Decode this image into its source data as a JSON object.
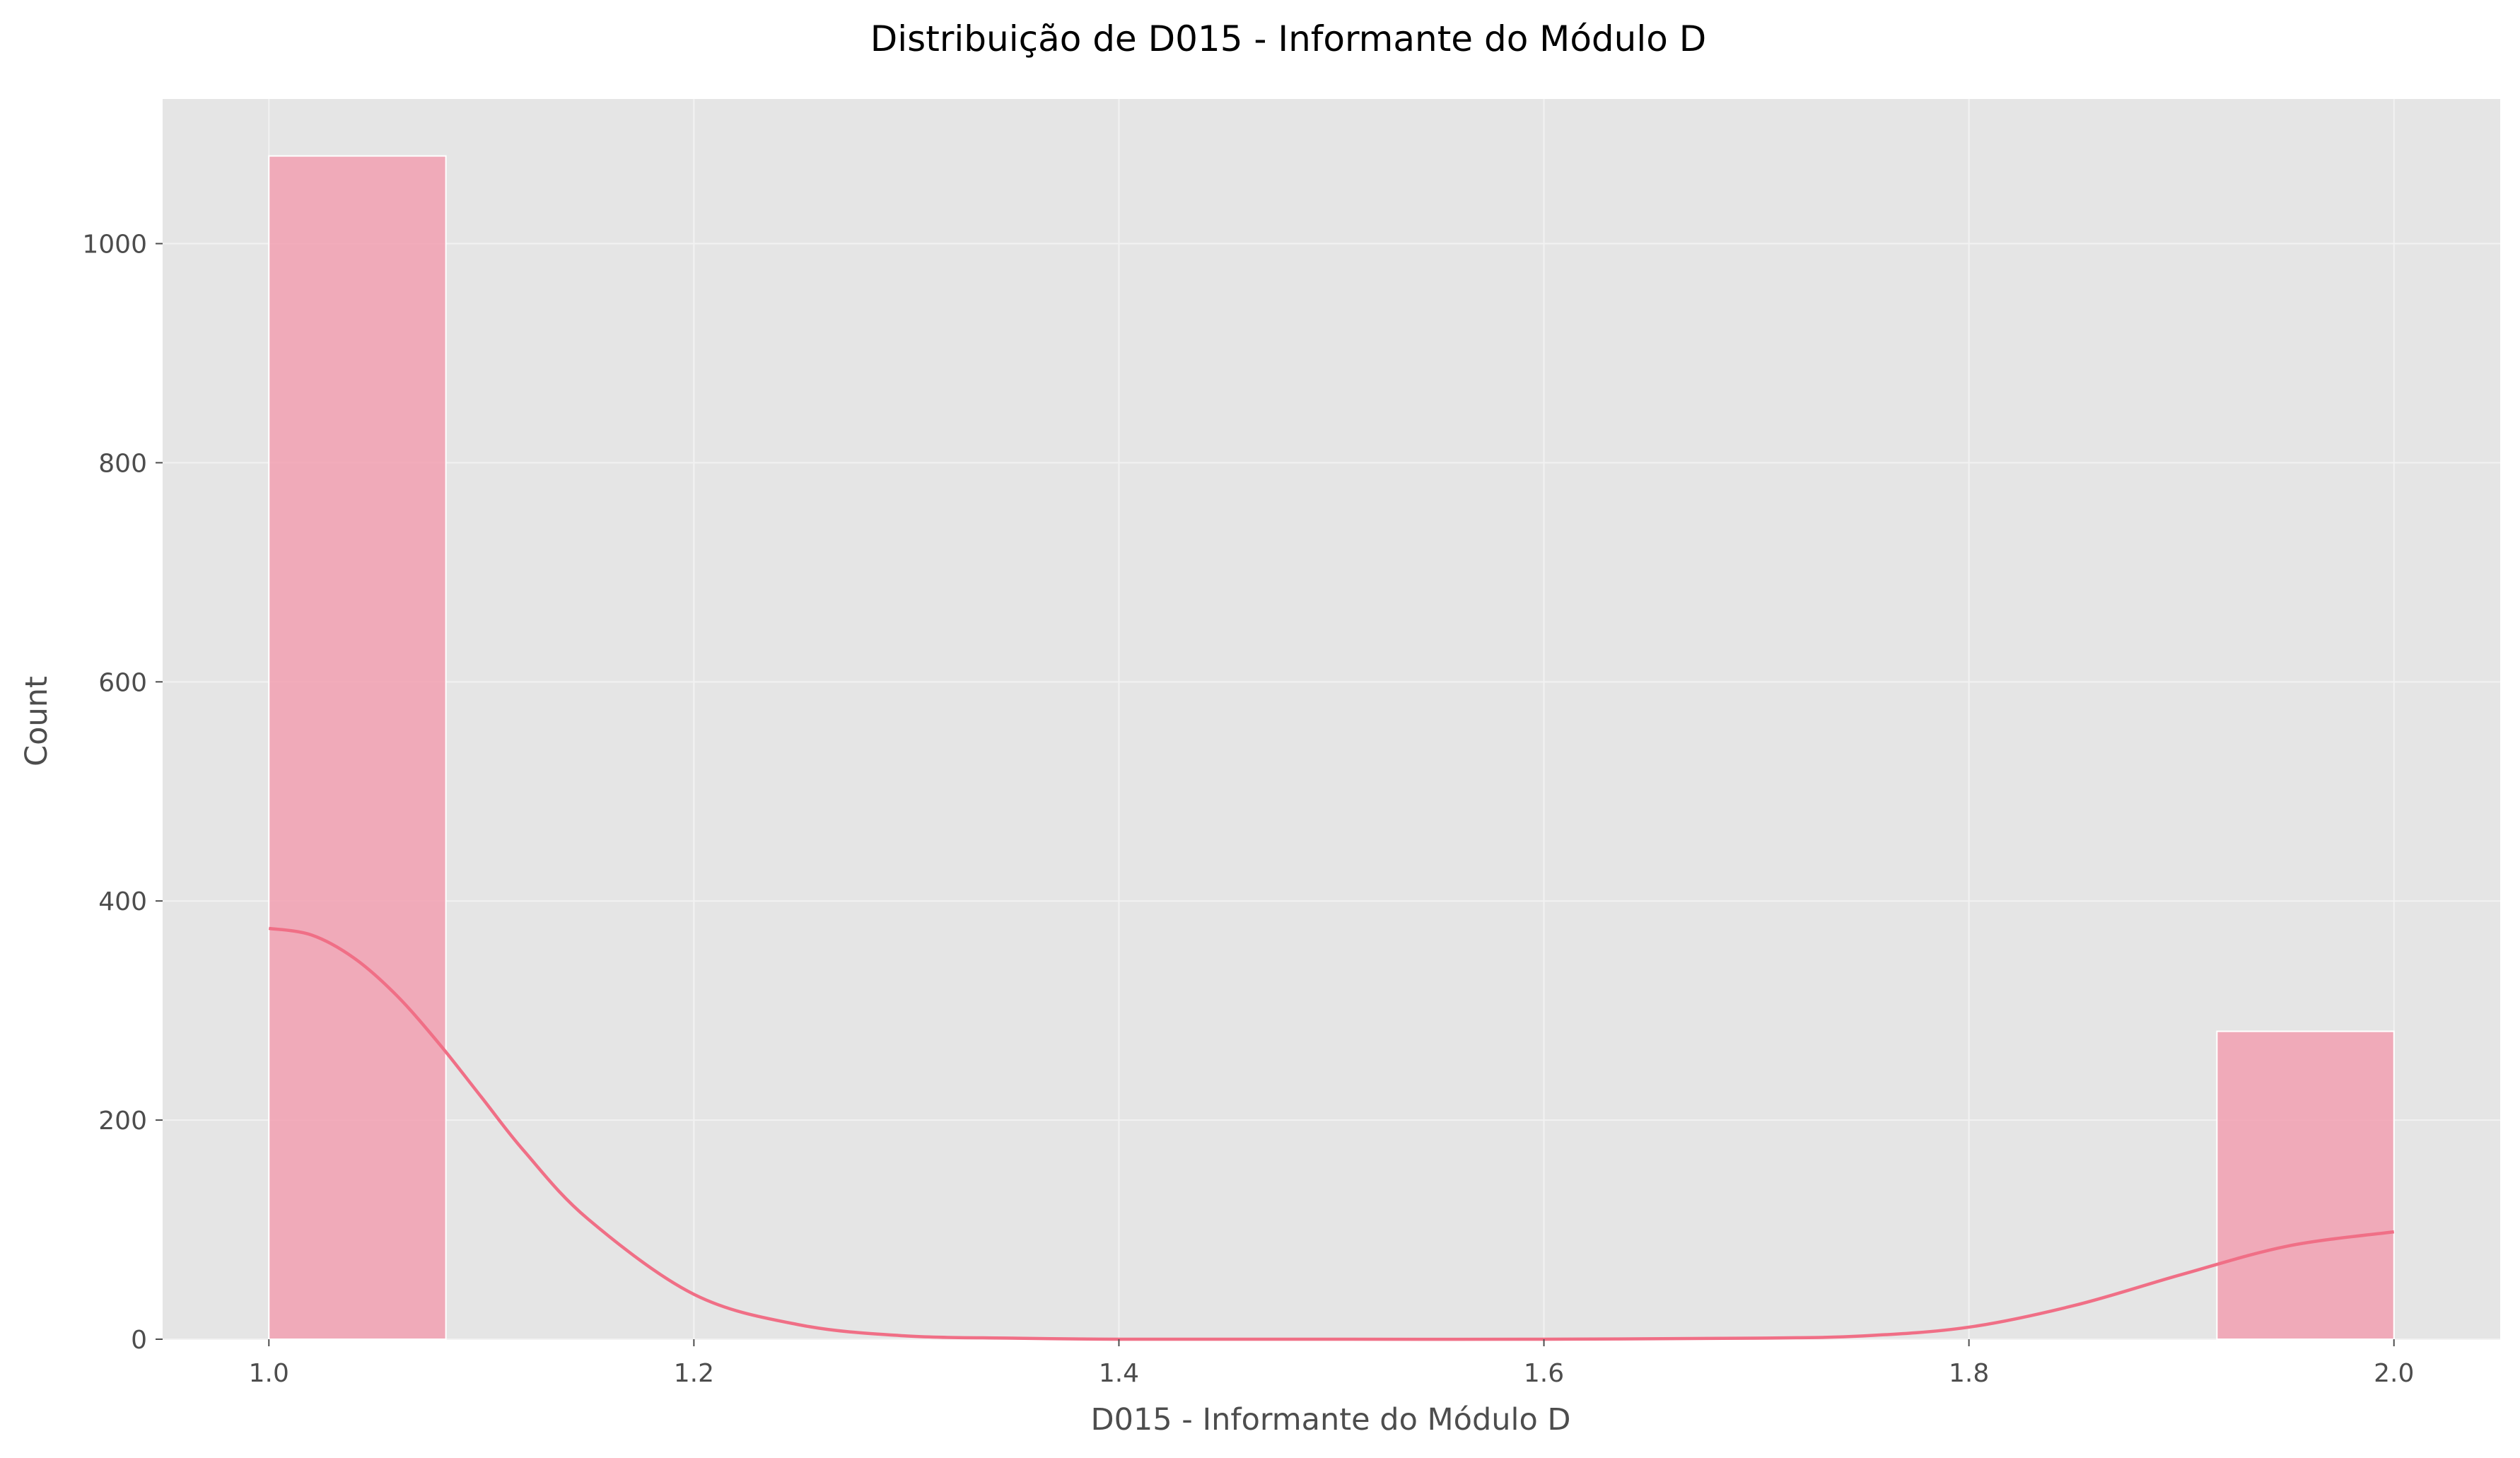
{
  "chart_data": {
    "type": "histogram",
    "title": "Distribuição de D015 - Informante do Módulo D",
    "xlabel": "D015 - Informante do Módulo D",
    "ylabel": "Count",
    "xlim": [
      0.95,
      2.05
    ],
    "ylim": [
      0,
      1132
    ],
    "xticks": [
      1.0,
      1.2,
      1.4,
      1.6,
      1.8,
      2.0
    ],
    "xtick_labels": [
      "1.0",
      "1.2",
      "1.4",
      "1.6",
      "1.8",
      "2.0"
    ],
    "yticks": [
      0,
      200,
      400,
      600,
      800,
      1000
    ],
    "ytick_labels": [
      "0",
      "200",
      "400",
      "600",
      "800",
      "1000"
    ],
    "bins": [
      {
        "x0": 1.0,
        "x1": 1.0833,
        "count": 1080
      },
      {
        "x0": 1.9167,
        "x1": 2.0,
        "count": 281
      }
    ],
    "kde": {
      "x": [
        1.0,
        1.02,
        1.04,
        1.06,
        1.08,
        1.1,
        1.12,
        1.15,
        1.2,
        1.25,
        1.3,
        1.35,
        1.4,
        1.5,
        1.6,
        1.7,
        1.75,
        1.8,
        1.85,
        1.9,
        1.95,
        2.0
      ],
      "y": [
        375,
        369,
        348,
        314,
        270,
        221,
        172,
        110,
        41,
        13,
        3,
        1,
        0,
        0,
        0,
        1,
        3,
        11,
        31,
        59,
        85,
        98
      ]
    },
    "grid": true,
    "colors": {
      "bar_fill": "#f2a0b1",
      "bar_edge": "#ffffff",
      "kde_line": "#f06f86",
      "plot_background": "#e5e5e5",
      "grid": "#f2f2f2"
    }
  }
}
